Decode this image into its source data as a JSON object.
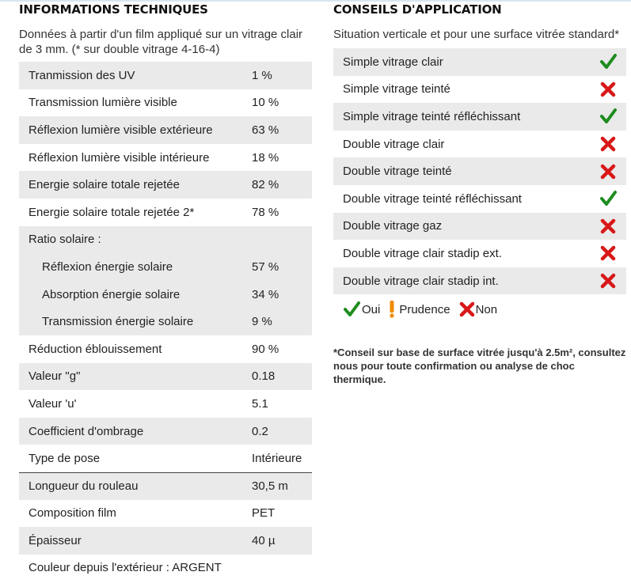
{
  "tech": {
    "title": "INFORMATIONS TECHNIQUES",
    "intro": "Données à partir d'un film appliqué sur un vitrage clair de 3 mm. (* sur double vitrage 4-16-4)",
    "rows": [
      {
        "label": "Tranmission des UV",
        "value": "1 %"
      },
      {
        "label": "Transmission lumière visible",
        "value": "10 %"
      },
      {
        "label": "Réflexion lumière visible extérieure",
        "value": "63 %"
      },
      {
        "label": "Réflexion lumière visible intérieure",
        "value": "18 %"
      },
      {
        "label": "Energie solaire totale rejetée",
        "value": "82 %"
      },
      {
        "label": "Energie solaire totale rejetée 2*",
        "value": "78 %"
      },
      {
        "label": "Ratio solaire :",
        "value": ""
      },
      {
        "label": "Réflexion énergie solaire",
        "value": "57 %"
      },
      {
        "label": "Absorption énergie solaire",
        "value": "34 %"
      },
      {
        "label": "Transmission énergie solaire",
        "value": "9 %"
      },
      {
        "label": "Réduction éblouissement",
        "value": "90 %"
      },
      {
        "label": "Valeur \"g\"",
        "value": "0.18"
      },
      {
        "label": "Valeur 'u'",
        "value": "5.1"
      },
      {
        "label": "Coefficient d'ombrage",
        "value": "0.2"
      },
      {
        "label": "Type de pose",
        "value": "Intérieure"
      },
      {
        "label": "Longueur du rouleau",
        "value": "30,5 m"
      },
      {
        "label": "Composition film",
        "value": "PET"
      },
      {
        "label": "Épaisseur",
        "value": "40 µ"
      },
      {
        "label": "Couleur depuis l'extérieur : ARGENT",
        "value": ""
      }
    ]
  },
  "advice": {
    "title": "CONSEILS D'APPLICATION",
    "intro": "Situation verticale et pour une surface vitrée standard*",
    "rows": [
      {
        "label": "Simple vitrage clair",
        "status": "oui"
      },
      {
        "label": "Simple vitrage teinté",
        "status": "non"
      },
      {
        "label": "Simple vitrage teinté réfléchissant",
        "status": "oui"
      },
      {
        "label": "Double vitrage clair",
        "status": "non"
      },
      {
        "label": "Double vitrage teinté",
        "status": "non"
      },
      {
        "label": "Double vitrage teinté réfléchissant",
        "status": "oui"
      },
      {
        "label": "Double vitrage gaz",
        "status": "non"
      },
      {
        "label": "Double vitrage clair stadip ext.",
        "status": "non"
      },
      {
        "label": "Double vitrage clair stadip int.",
        "status": "non"
      }
    ],
    "legend": {
      "yes": "Oui",
      "caution": "Prudence",
      "no": "Non"
    },
    "note": "*Conseil sur base de surface vitrée jusqu'à 2.5m², consultez nous pour toute confirmation ou analyse de choc thermique."
  },
  "colors": {
    "check": "#1e8c1e",
    "cross": "#d81818",
    "caution": "#f08a00",
    "shade": "#eaeaea"
  }
}
